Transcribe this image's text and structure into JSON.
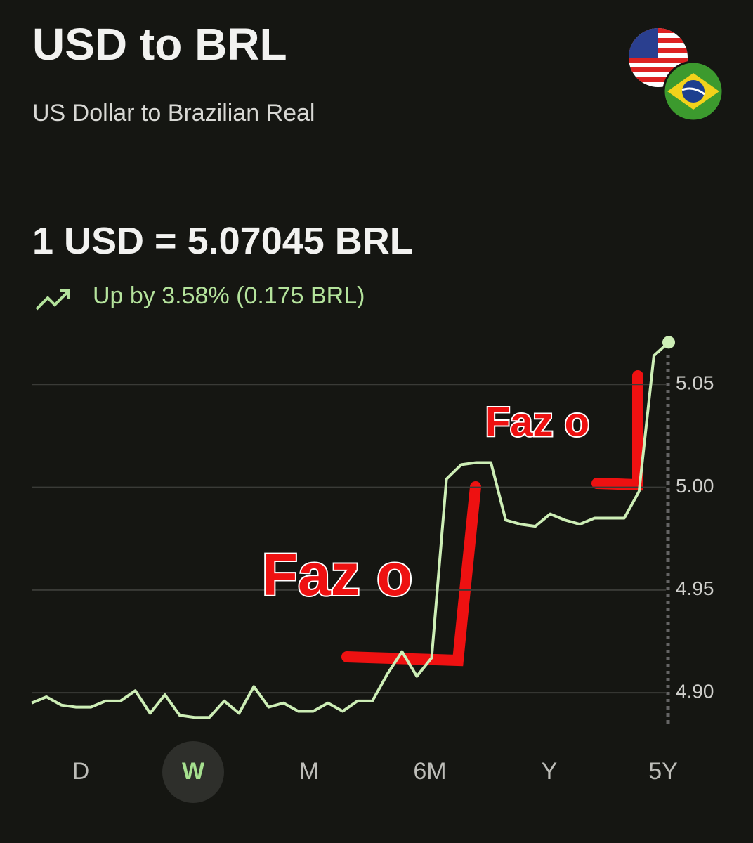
{
  "header": {
    "title": "USD to BRL",
    "subtitle": "US Dollar to Brazilian Real"
  },
  "rate": "1 USD = 5.07045 BRL",
  "change": "Up by 3.58% (0.175 BRL)",
  "chart_data": {
    "type": "line",
    "color": "#cdeeb6",
    "values": [
      4.895,
      4.898,
      4.894,
      4.893,
      4.893,
      4.896,
      4.896,
      4.901,
      4.89,
      4.899,
      4.889,
      4.888,
      4.888,
      4.896,
      4.89,
      4.903,
      4.893,
      4.895,
      4.891,
      4.891,
      4.895,
      4.891,
      4.896,
      4.896,
      4.909,
      4.92,
      4.908,
      4.917,
      5.004,
      5.011,
      5.012,
      5.012,
      4.984,
      4.982,
      4.981,
      4.987,
      4.984,
      4.982,
      4.985,
      4.985,
      4.985,
      4.998,
      5.064,
      5.0705
    ],
    "ylim": [
      4.885,
      5.073
    ],
    "yticks": [
      {
        "value": 4.9,
        "label": "4.90"
      },
      4.95,
      {
        "value": 5,
        "label": "5.00"
      },
      5.05
    ],
    "grid": true,
    "annotations": [
      "Faz o",
      "Faz o"
    ]
  },
  "ranges": {
    "options": [
      "D",
      "W",
      "M",
      "6M",
      "Y",
      "5Y"
    ],
    "selected_index": 1
  }
}
